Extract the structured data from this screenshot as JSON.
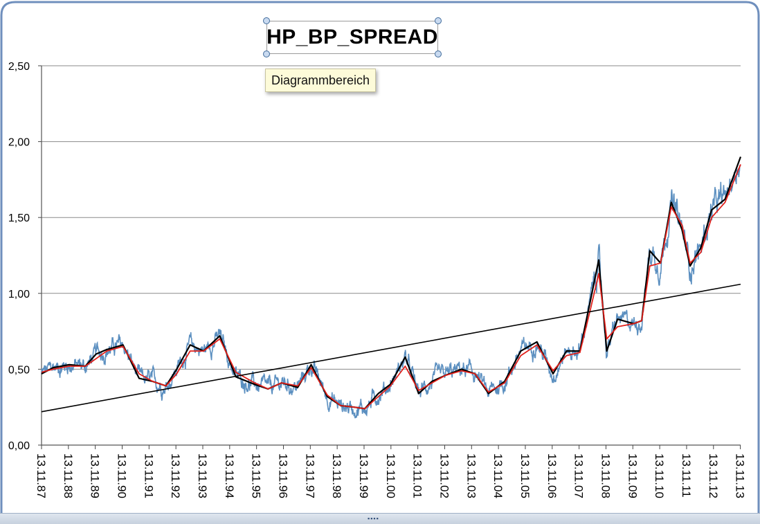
{
  "chart_data": {
    "type": "line",
    "title": "HP_BP_SPREAD",
    "xlabel": "",
    "ylabel": "",
    "ylim": [
      0,
      2.5
    ],
    "y_ticks": [
      "0,00",
      "0,50",
      "1,00",
      "1,50",
      "2,00",
      "2,50"
    ],
    "x_tick_labels": [
      "13.11.87",
      "13.11.88",
      "13.11.89",
      "13.11.90",
      "13.11.91",
      "13.11.92",
      "13.11.93",
      "13.11.94",
      "13.11.95",
      "13.11.96",
      "13.11.97",
      "13.11.98",
      "13.11.99",
      "13.11.00",
      "13.11.01",
      "13.11.02",
      "13.11.03",
      "13.11.04",
      "13.11.05",
      "13.11.06",
      "13.11.07",
      "13.11.08",
      "13.11.09",
      "13.11.10",
      "13.11.11",
      "13.11.12",
      "13.11.13"
    ],
    "grid": true,
    "legend": "none",
    "series_colors": {
      "raw": "#5b8fc0",
      "smoothed_black": "#000000",
      "smoothed_red": "#e0201a",
      "trend": "#000000"
    },
    "x_years": [
      1987.87,
      1988.3,
      1988.9,
      1989.5,
      1989.9,
      1990.3,
      1990.9,
      1991.5,
      1992.0,
      1992.5,
      1992.9,
      1993.4,
      1993.9,
      1994.5,
      1995.1,
      1995.8,
      1996.3,
      1996.8,
      1997.4,
      1997.9,
      1998.5,
      1999.0,
      1999.5,
      1999.9,
      2000.4,
      2000.85,
      2001.4,
      2001.9,
      2002.4,
      2002.9,
      2003.5,
      2004.0,
      2004.5,
      2005.1,
      2005.7,
      2006.3,
      2006.9,
      2007.4,
      2007.9,
      2008.3,
      2008.6,
      2008.9,
      2009.3,
      2009.9,
      2010.2,
      2010.5,
      2010.9,
      2011.3,
      2011.7,
      2012.0,
      2012.4,
      2012.8,
      2013.3,
      2013.88
    ],
    "series": [
      {
        "name": "",
        "key": "smoothed_black",
        "values": [
          0.47,
          0.51,
          0.53,
          0.52,
          0.6,
          0.63,
          0.66,
          0.44,
          0.42,
          0.39,
          0.5,
          0.66,
          0.62,
          0.72,
          0.45,
          0.4,
          0.37,
          0.41,
          0.38,
          0.53,
          0.32,
          0.26,
          0.25,
          0.24,
          0.34,
          0.4,
          0.58,
          0.34,
          0.42,
          0.46,
          0.5,
          0.47,
          0.34,
          0.42,
          0.62,
          0.68,
          0.47,
          0.62,
          0.62,
          0.96,
          1.22,
          0.62,
          0.83,
          0.8,
          0.82,
          1.28,
          1.2,
          1.6,
          1.42,
          1.18,
          1.3,
          1.55,
          1.62,
          1.9
        ]
      },
      {
        "name": "",
        "key": "smoothed_red",
        "values": [
          0.48,
          0.5,
          0.52,
          0.52,
          0.57,
          0.62,
          0.65,
          0.47,
          0.42,
          0.39,
          0.47,
          0.62,
          0.62,
          0.7,
          0.48,
          0.41,
          0.37,
          0.41,
          0.39,
          0.51,
          0.33,
          0.26,
          0.25,
          0.24,
          0.32,
          0.39,
          0.52,
          0.36,
          0.41,
          0.46,
          0.49,
          0.47,
          0.35,
          0.41,
          0.59,
          0.66,
          0.49,
          0.59,
          0.61,
          0.9,
          1.13,
          0.7,
          0.78,
          0.8,
          0.82,
          1.18,
          1.2,
          1.57,
          1.45,
          1.2,
          1.27,
          1.5,
          1.6,
          1.85
        ]
      },
      {
        "name": "",
        "key": "trend",
        "values_at_ends": [
          0.22,
          1.06
        ]
      }
    ]
  },
  "chart_ui": {
    "tooltip": "Diagrammbereich"
  }
}
